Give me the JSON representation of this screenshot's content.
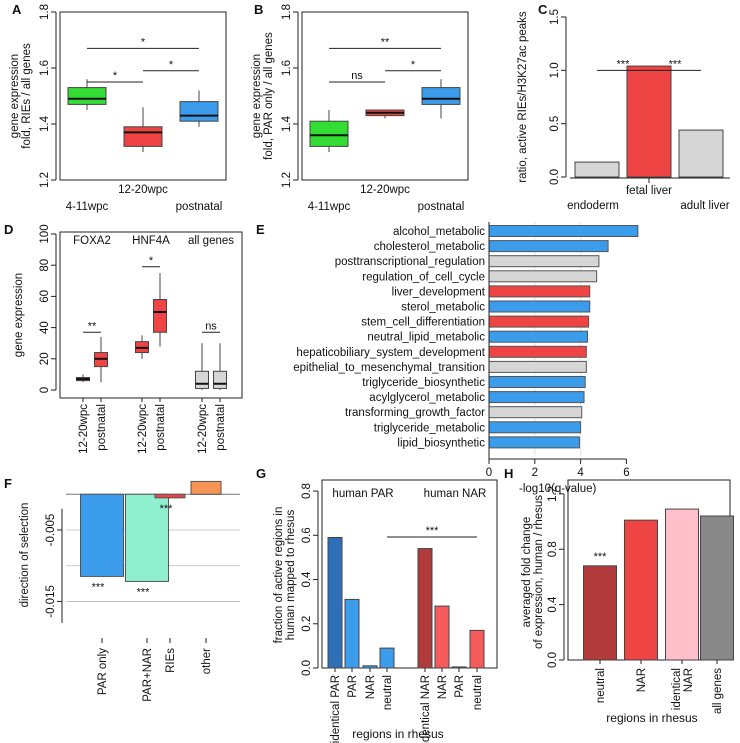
{
  "colors": {
    "green": "#33dd33",
    "red": "#ee4444",
    "blue": "#3b9cec",
    "gray": "#d6d6d6",
    "teal": "#8ff0cf",
    "orange": "#f59454",
    "pink": "#ffc0cc",
    "darkred": "#b23a3a",
    "darkblue": "#2f6fb7",
    "lightred": "#f55b5b",
    "midgray": "#888888"
  },
  "chart_data": [
    {
      "panel": "A",
      "type": "box",
      "ylabel": [
        "gene expression",
        "fold, RIEs / all genes"
      ],
      "ylim": [
        1.2,
        1.8
      ],
      "yticks": [
        "1.2",
        "1.4",
        "1.6",
        "1.8"
      ],
      "xlabels": [
        "4-11wpc",
        "12-20wpc",
        "postnatal"
      ],
      "boxes": [
        {
          "name": "4-11wpc",
          "color": "green",
          "min": 1.45,
          "q1": 1.47,
          "median": 1.49,
          "q3": 1.53,
          "max": 1.56
        },
        {
          "name": "12-20wpc",
          "color": "red",
          "min": 1.3,
          "q1": 1.32,
          "median": 1.37,
          "q3": 1.39,
          "max": 1.46
        },
        {
          "name": "postnatal",
          "color": "blue",
          "min": 1.39,
          "q1": 1.41,
          "median": 1.43,
          "q3": 1.48,
          "max": 1.52
        }
      ],
      "sig": [
        {
          "from": 0,
          "to": 2,
          "y": 1.67,
          "label": "*"
        },
        {
          "from": 0,
          "to": 1,
          "y": 1.55,
          "label": "*"
        },
        {
          "from": 1,
          "to": 2,
          "y": 1.59,
          "label": "*"
        }
      ]
    },
    {
      "panel": "B",
      "type": "box",
      "ylabel": [
        "gene expression",
        "fold, PAR only / all genes"
      ],
      "ylim": [
        1.2,
        1.8
      ],
      "yticks": [
        "1.2",
        "1.4",
        "1.6",
        "1.8"
      ],
      "xlabels": [
        "4-11wpc",
        "12-20wpc",
        "postnatal"
      ],
      "boxes": [
        {
          "name": "4-11wpc",
          "color": "green",
          "min": 1.3,
          "q1": 1.32,
          "median": 1.36,
          "q3": 1.41,
          "max": 1.45
        },
        {
          "name": "12-20wpc",
          "color": "red",
          "min": 1.42,
          "q1": 1.43,
          "median": 1.44,
          "q3": 1.45,
          "max": 1.45
        },
        {
          "name": "postnatal",
          "color": "blue",
          "min": 1.42,
          "q1": 1.47,
          "median": 1.49,
          "q3": 1.53,
          "max": 1.56
        }
      ],
      "sig": [
        {
          "from": 0,
          "to": 2,
          "y": 1.67,
          "label": "**"
        },
        {
          "from": 0,
          "to": 1,
          "y": 1.55,
          "label": "ns"
        },
        {
          "from": 1,
          "to": 2,
          "y": 1.59,
          "label": "*"
        }
      ]
    },
    {
      "panel": "C",
      "type": "bar",
      "ylabel": [
        "ratio, active RIEs/H3K27ac peaks"
      ],
      "ylim": [
        0,
        1.5
      ],
      "yticks": [
        "0.0",
        "0.5",
        "1.0",
        "1.5"
      ],
      "categories": [
        "endoderm",
        "fetal liver",
        "adult liver"
      ],
      "values": [
        0.14,
        1.04,
        0.44
      ],
      "bar_colors": [
        "gray",
        "red",
        "gray"
      ],
      "sig": [
        {
          "from": 0,
          "to": 1,
          "y": 1.0,
          "label": "***"
        },
        {
          "from": 1,
          "to": 2,
          "y": 1.0,
          "label": "***"
        }
      ]
    },
    {
      "panel": "D",
      "type": "box",
      "ylabel": [
        "gene expression"
      ],
      "ylim": [
        0,
        100
      ],
      "yticks": [
        "0",
        "20",
        "40",
        "60",
        "80",
        "100"
      ],
      "group_labels": [
        "FOXA2",
        "HNF4A",
        "all genes"
      ],
      "xlabels": [
        "12-20wpc",
        "postnatal",
        "12-20wpc",
        "postnatal",
        "12-20wpc",
        "postnatal"
      ],
      "boxes": [
        {
          "color": "red",
          "min": 5,
          "q1": 6,
          "median": 7,
          "q3": 8,
          "max": 10
        },
        {
          "color": "red",
          "min": 5,
          "q1": 15,
          "median": 20,
          "q3": 24,
          "max": 34
        },
        {
          "color": "red",
          "min": 20,
          "q1": 24,
          "median": 27,
          "q3": 31,
          "max": 35
        },
        {
          "color": "red",
          "min": 28,
          "q1": 37,
          "median": 50,
          "q3": 58,
          "max": 75
        },
        {
          "color": "gray",
          "min": 0,
          "q1": 1,
          "median": 4,
          "q3": 12,
          "max": 30
        },
        {
          "color": "gray",
          "min": 0,
          "q1": 1,
          "median": 4,
          "q3": 12,
          "max": 30
        }
      ],
      "sig": [
        {
          "from": 0,
          "to": 1,
          "y": 37,
          "label": "**"
        },
        {
          "from": 2,
          "to": 3,
          "y": 79,
          "label": "*"
        },
        {
          "from": 4,
          "to": 5,
          "y": 37,
          "label": "ns"
        }
      ]
    },
    {
      "panel": "E",
      "type": "hbar",
      "xlabel": "-log10(q-value)",
      "xlim": [
        0,
        7
      ],
      "xticks": [
        "0",
        "2",
        "4",
        "6"
      ],
      "categories": [
        "alcohol_metabolic",
        "cholesterol_metabolic",
        "posttranscriptional_regulation",
        "regulation_of_cell_cycle",
        "liver_development",
        "sterol_metabolic",
        "stem_cell_differentiation",
        "neutral_lipid_metabolic",
        "hepaticobiliary_system_development",
        "epithelial_to_mesenchymal_transition",
        "triglyceride_biosynthetic",
        "acylglycerol_metabolic",
        "transforming_growth_factor",
        "triglyceride_metabolic",
        "lipid_biosynthetic"
      ],
      "values": [
        6.5,
        5.2,
        4.8,
        4.7,
        4.4,
        4.4,
        4.35,
        4.3,
        4.25,
        4.25,
        4.2,
        4.15,
        4.05,
        4.0,
        3.95
      ],
      "bar_colors": [
        "blue",
        "blue",
        "gray",
        "gray",
        "red",
        "blue",
        "red",
        "blue",
        "red",
        "gray",
        "blue",
        "blue",
        "gray",
        "blue",
        "blue"
      ]
    },
    {
      "panel": "F",
      "type": "bar",
      "ylabel": [
        "direction of selection"
      ],
      "ylim": [
        -0.019,
        0.002
      ],
      "yticks": [
        "-0.005",
        "-0.015"
      ],
      "categories": [
        "PAR only",
        "PAR+NAR",
        "RIEs",
        "other"
      ],
      "values": [
        -0.0115,
        -0.0122,
        -0.0005,
        0.0018
      ],
      "bar_colors": [
        "blue",
        "teal",
        "red",
        "orange"
      ],
      "stars": [
        "***",
        "***",
        "***",
        ""
      ]
    },
    {
      "panel": "G",
      "type": "bar",
      "ylabel": [
        "fraction of active regions in",
        "human mapped to rhesus"
      ],
      "xlabel": "regions in rhesus",
      "ylim": [
        0,
        0.85
      ],
      "yticks": [
        "0.0",
        "0.2",
        "0.4",
        "0.6",
        "0.8"
      ],
      "group_labels": [
        "human PAR",
        "human NAR"
      ],
      "categories": [
        "identical PAR",
        "PAR",
        "NAR",
        "neutral",
        "identical NAR",
        "NAR",
        "PAR",
        "neutral"
      ],
      "values": [
        0.59,
        0.31,
        0.01,
        0.09,
        0.54,
        0.28,
        0.005,
        0.17
      ],
      "bar_colors": [
        "darkblue",
        "blue",
        "blue",
        "blue",
        "darkred",
        "lightred",
        "lightred",
        "lightred"
      ],
      "sig": [
        {
          "label": "***"
        }
      ]
    },
    {
      "panel": "H",
      "type": "bar",
      "ylabel": [
        "averaged fold change",
        "of expression, human / rhesus"
      ],
      "xlabel": "regions in rhesus",
      "ylim": [
        0,
        1.3
      ],
      "yticks": [
        "0.0",
        "0.4",
        "0.8",
        "1.2"
      ],
      "categories": [
        "neutral",
        "NAR",
        "identical NAR",
        "all genes"
      ],
      "values": [
        0.68,
        1.01,
        1.09,
        1.04
      ],
      "bar_colors": [
        "darkred",
        "red",
        "pink",
        "midgray"
      ],
      "stars": [
        "***",
        "",
        "",
        ""
      ]
    }
  ]
}
